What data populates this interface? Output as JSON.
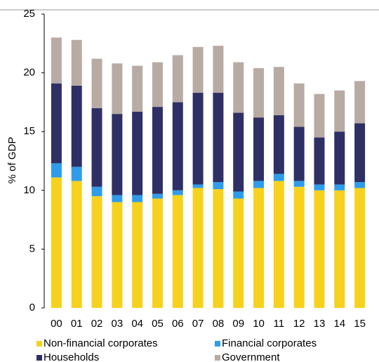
{
  "chart_data": {
    "type": "bar",
    "stacked": true,
    "ylabel": "% of GDP",
    "categories": [
      "00",
      "01",
      "02",
      "03",
      "04",
      "05",
      "06",
      "07",
      "08",
      "09",
      "10",
      "11",
      "12",
      "13",
      "14",
      "15"
    ],
    "ylim": [
      0,
      25
    ],
    "yticks": [
      0,
      5,
      10,
      15,
      20,
      25
    ],
    "grid": false,
    "legend": "bottom",
    "series": [
      {
        "name": "Non-financial corporates",
        "color": "#f6d21e",
        "values": [
          11.1,
          10.8,
          9.5,
          9.0,
          9.0,
          9.3,
          9.6,
          10.2,
          10.1,
          9.3,
          10.2,
          10.8,
          10.3,
          10.0,
          10.0,
          10.2
        ]
      },
      {
        "name": "Financial corporates",
        "color": "#2f9ceb",
        "values": [
          1.2,
          1.2,
          0.8,
          0.6,
          0.6,
          0.4,
          0.4,
          0.3,
          0.6,
          0.6,
          0.6,
          0.6,
          0.5,
          0.5,
          0.5,
          0.5
        ]
      },
      {
        "name": "Households",
        "color": "#2e3065",
        "values": [
          6.8,
          6.9,
          6.7,
          6.9,
          7.1,
          7.4,
          7.5,
          7.8,
          7.6,
          6.7,
          5.4,
          5.0,
          4.6,
          4.0,
          4.5,
          5.0
        ]
      },
      {
        "name": "Government",
        "color": "#b8aba4",
        "values": [
          3.9,
          3.9,
          4.2,
          4.3,
          3.9,
          3.8,
          4.0,
          3.9,
          4.0,
          4.3,
          4.2,
          4.1,
          3.7,
          3.7,
          3.5,
          3.6
        ]
      }
    ]
  }
}
